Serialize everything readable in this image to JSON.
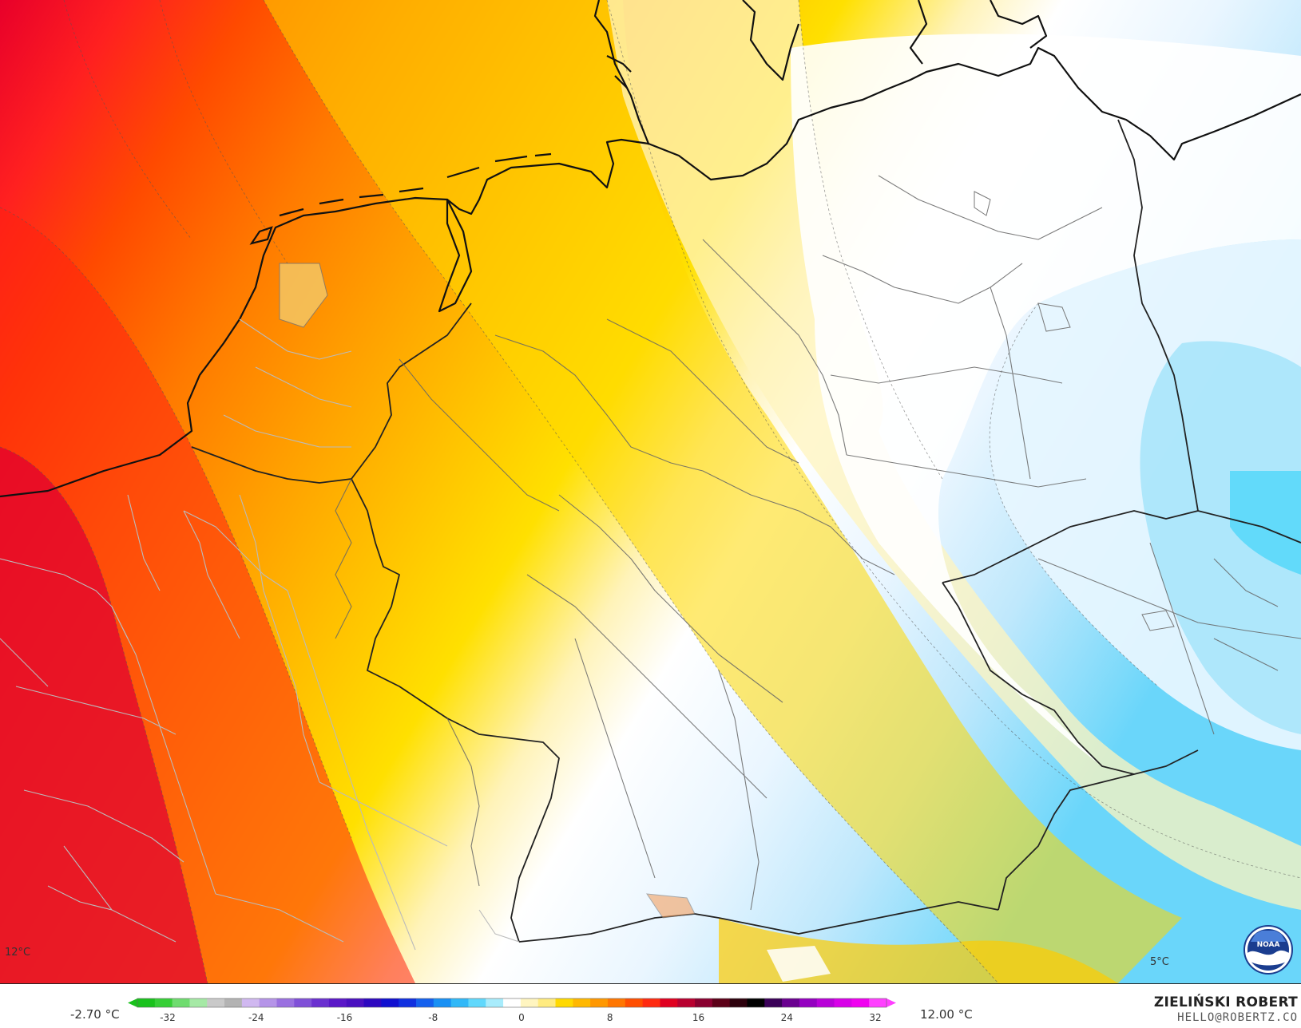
{
  "legend": {
    "min_label": "-2.70 °C",
    "max_label": "12.00 °C",
    "ticks": [
      "-32",
      "-24",
      "-16",
      "-8",
      "0",
      "8",
      "16",
      "24",
      "32"
    ],
    "colors": [
      "#19c21c",
      "#36cf36",
      "#6fdc6f",
      "#a5e9a5",
      "#c9c9c9",
      "#b3b3b3",
      "#d0b8f0",
      "#b594e8",
      "#9a70e0",
      "#8050d8",
      "#6a30d0",
      "#5a18c8",
      "#4a10c0",
      "#2d08c0",
      "#1010d0",
      "#1030e0",
      "#1460ee",
      "#1890f4",
      "#30b8f8",
      "#60d8fc",
      "#a8ecfc",
      "#ffffff",
      "#fff5c0",
      "#ffeb80",
      "#ffd900",
      "#ffb800",
      "#ff9800",
      "#ff7600",
      "#ff4e00",
      "#ff2a10",
      "#e00020",
      "#b80030",
      "#8a0030",
      "#5c0018",
      "#2c000c",
      "#000000",
      "#3a0058",
      "#6a0090",
      "#9400c0",
      "#b800d8",
      "#d800e8",
      "#f000f0",
      "#ff40ff"
    ]
  },
  "map_labels": {
    "left": "12°C",
    "right": "5°C"
  },
  "author": {
    "name": "ZIELIŃSKI ROBERT",
    "email": "HELLO@ROBERTZ.CO"
  },
  "logo": {
    "icon": "noaa-logo-icon",
    "text": "NOAA"
  }
}
